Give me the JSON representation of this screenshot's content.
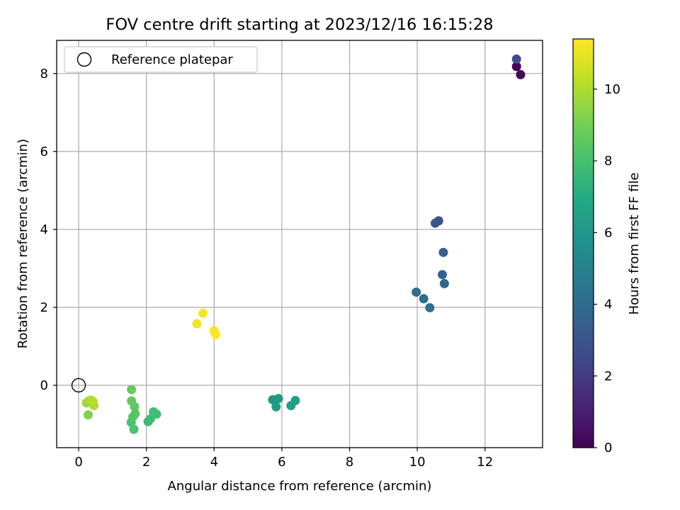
{
  "chart_data": {
    "type": "scatter",
    "title": "FOV centre drift starting at 2023/12/16 16:15:28",
    "xlabel": "Angular distance from reference (arcmin)",
    "ylabel": "Rotation from reference (arcmin)",
    "xlim": [
      -0.65,
      13.7
    ],
    "ylim": [
      -1.6,
      8.85
    ],
    "xticks": [
      0,
      2,
      4,
      6,
      8,
      10,
      12
    ],
    "yticks": [
      0,
      2,
      4,
      6,
      8
    ],
    "xtick_labels": [
      "0",
      "2",
      "4",
      "6",
      "8",
      "10",
      "12"
    ],
    "ytick_labels": [
      "0",
      "2",
      "4",
      "6",
      "8"
    ],
    "grid": true,
    "legend": {
      "position": "top-left",
      "entries": [
        "Reference platepar"
      ]
    },
    "reference_point": {
      "label": "Reference platepar",
      "x": 0,
      "y": 0
    },
    "colorbar": {
      "label": "Hours from first FF file",
      "colormap": "viridis",
      "range": [
        0,
        11.4
      ],
      "ticks": [
        0,
        2,
        4,
        6,
        8,
        10
      ],
      "tick_labels": [
        "0",
        "2",
        "4",
        "6",
        "8",
        "10"
      ]
    },
    "points": [
      {
        "x": 12.93,
        "y": 8.18,
        "hours": 0.05
      },
      {
        "x": 13.05,
        "y": 7.97,
        "hours": 0.2
      },
      {
        "x": 12.93,
        "y": 8.37,
        "hours": 2.6
      },
      {
        "x": 10.63,
        "y": 4.22,
        "hours": 2.9
      },
      {
        "x": 10.53,
        "y": 4.16,
        "hours": 3.0
      },
      {
        "x": 10.77,
        "y": 3.41,
        "hours": 3.4
      },
      {
        "x": 10.74,
        "y": 2.84,
        "hours": 3.6
      },
      {
        "x": 10.8,
        "y": 2.61,
        "hours": 3.8
      },
      {
        "x": 9.97,
        "y": 2.39,
        "hours": 4.1
      },
      {
        "x": 10.19,
        "y": 2.22,
        "hours": 4.2
      },
      {
        "x": 10.37,
        "y": 1.99,
        "hours": 4.3
      },
      {
        "x": 5.73,
        "y": -0.37,
        "hours": 6.0
      },
      {
        "x": 5.9,
        "y": -0.34,
        "hours": 6.1
      },
      {
        "x": 5.83,
        "y": -0.55,
        "hours": 6.2
      },
      {
        "x": 6.27,
        "y": -0.52,
        "hours": 6.3
      },
      {
        "x": 6.4,
        "y": -0.39,
        "hours": 6.4
      },
      {
        "x": 2.05,
        "y": -0.93,
        "hours": 7.6
      },
      {
        "x": 2.12,
        "y": -0.86,
        "hours": 7.8
      },
      {
        "x": 2.21,
        "y": -0.68,
        "hours": 7.9
      },
      {
        "x": 2.3,
        "y": -0.74,
        "hours": 8.0
      },
      {
        "x": 1.55,
        "y": -0.95,
        "hours": 8.1
      },
      {
        "x": 1.63,
        "y": -1.13,
        "hours": 8.2
      },
      {
        "x": 1.6,
        "y": -0.81,
        "hours": 8.3
      },
      {
        "x": 1.67,
        "y": -0.73,
        "hours": 8.4
      },
      {
        "x": 1.65,
        "y": -0.55,
        "hours": 8.5
      },
      {
        "x": 1.56,
        "y": -0.4,
        "hours": 8.6
      },
      {
        "x": 1.56,
        "y": -0.11,
        "hours": 8.7
      },
      {
        "x": 0.28,
        "y": -0.76,
        "hours": 9.2
      },
      {
        "x": 0.23,
        "y": -0.45,
        "hours": 9.6
      },
      {
        "x": 0.3,
        "y": -0.4,
        "hours": 9.8
      },
      {
        "x": 0.37,
        "y": -0.38,
        "hours": 9.9
      },
      {
        "x": 0.45,
        "y": -0.52,
        "hours": 10.0
      },
      {
        "x": 0.42,
        "y": -0.41,
        "hours": 10.1
      },
      {
        "x": 3.49,
        "y": 1.58,
        "hours": 11.2
      },
      {
        "x": 3.67,
        "y": 1.85,
        "hours": 11.25
      },
      {
        "x": 4.0,
        "y": 1.4,
        "hours": 11.3
      },
      {
        "x": 4.05,
        "y": 1.3,
        "hours": 11.35
      }
    ]
  }
}
